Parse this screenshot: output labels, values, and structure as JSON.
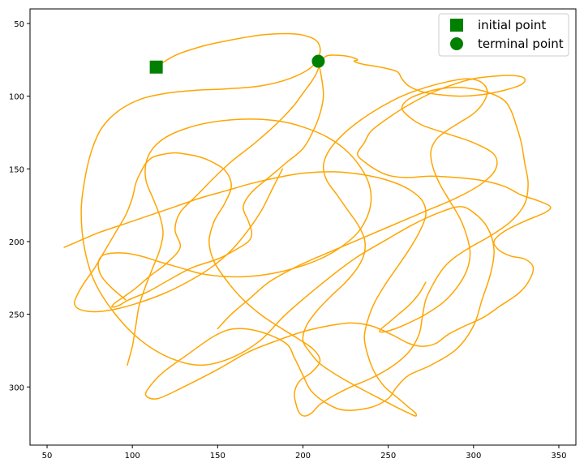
{
  "chart_data": {
    "type": "line",
    "title": "",
    "xlabel": "",
    "ylabel": "",
    "xlim": [
      40,
      360
    ],
    "ylim": [
      340,
      40
    ],
    "y_inverted": true,
    "x_ticks": [
      50,
      100,
      150,
      200,
      250,
      300,
      350
    ],
    "y_ticks": [
      50,
      100,
      150,
      200,
      250,
      300
    ],
    "grid": false,
    "legend_position": "top-right",
    "colors": {
      "trajectory": "#FFA500",
      "markers": "#008000"
    },
    "series": [
      {
        "kind": "trajectory",
        "x": [
          114,
          125,
          140,
          155,
          175,
          190,
          200,
          208,
          210,
          205,
          192,
          175,
          155,
          137,
          120,
          105,
          92,
          82,
          76,
          72,
          70,
          72,
          78,
          90,
          105,
          122,
          140,
          158,
          175,
          190,
          210,
          230,
          250,
          265,
          280,
          292,
          300,
          308,
          312,
          310,
          305,
          300,
          290,
          275,
          262,
          255,
          250,
          240,
          225,
          215,
          205,
          200,
          195,
          190,
          175,
          160,
          148,
          132,
          118,
          110,
          108,
          115,
          130,
          150,
          168,
          185,
          200,
          215,
          228,
          240,
          252,
          262,
          270,
          278,
          285,
          295,
          306,
          316,
          326,
          332,
          335,
          330,
          322,
          315,
          312,
          318,
          330,
          342,
          345,
          338,
          328,
          318,
          305,
          290,
          275,
          262,
          252,
          245,
          237,
          232,
          236,
          240,
          250,
          262,
          275,
          288,
          300,
          315,
          325,
          330,
          328,
          318,
          305,
          292,
          280,
          270,
          262,
          258,
          255,
          245,
          235,
          230,
          232,
          228,
          222,
          215,
          212,
          210,
          208,
          205,
          200,
          195,
          188,
          180,
          170,
          158,
          148,
          138,
          128,
          125,
          128,
          120,
          110,
          102,
          95,
          90,
          88,
          92,
          98,
          110,
          122,
          135,
          150,
          160,
          168,
          170,
          168,
          165,
          170,
          180,
          190,
          200,
          206,
          210,
          212,
          211,
          209
        ],
        "y": [
          80,
          72,
          66,
          62,
          58,
          57,
          58,
          62,
          70,
          80,
          88,
          93,
          95,
          96,
          98,
          102,
          110,
          122,
          138,
          158,
          180,
          205,
          228,
          250,
          268,
          280,
          285,
          280,
          268,
          250,
          230,
          212,
          198,
          188,
          180,
          176,
          180,
          190,
          205,
          222,
          240,
          258,
          274,
          285,
          292,
          300,
          308,
          314,
          316,
          312,
          303,
          292,
          280,
          270,
          262,
          260,
          265,
          278,
          290,
          300,
          306,
          308,
          300,
          288,
          276,
          268,
          262,
          258,
          256,
          258,
          264,
          270,
          272,
          270,
          264,
          258,
          252,
          244,
          236,
          228,
          218,
          212,
          210,
          206,
          200,
          193,
          186,
          180,
          176,
          172,
          168,
          162,
          158,
          156,
          155,
          156,
          155,
          152,
          146,
          140,
          132,
          124,
          115,
          106,
          98,
          92,
          88,
          86,
          86,
          88,
          92,
          96,
          99,
          100,
          99,
          97,
          93,
          88,
          83,
          80,
          78,
          76,
          75,
          73,
          72,
          72,
          74,
          78,
          84,
          90,
          98,
          106,
          115,
          124,
          134,
          145,
          156,
          168,
          180,
          192,
          204,
          215,
          224,
          232,
          238,
          242,
          245,
          244,
          240,
          234,
          226,
          218,
          212,
          206,
          200,
          194,
          186,
          176,
          166,
          156,
          146,
          136,
          124,
          112,
          100,
          88,
          76
        ]
      },
      {
        "kind": "trajectory",
        "x": [
          150,
          158,
          168,
          180,
          195,
          210,
          230,
          250,
          270,
          290,
          305,
          313,
          312,
          300,
          285,
          270,
          262,
          258,
          262,
          270,
          280,
          290,
          300,
          310,
          318,
          322,
          325,
          328,
          330,
          332,
          330,
          322,
          310,
          298,
          290,
          284,
          280,
          276,
          272,
          270,
          268,
          262,
          252,
          240,
          228,
          218,
          210,
          205,
          201,
          198,
          196,
          195,
          198,
          205,
          210,
          206,
          196,
          185,
          175,
          165,
          156,
          148,
          145,
          148,
          154,
          158,
          155,
          148,
          140,
          132,
          125,
          118,
          112,
          108,
          105,
          102,
          100,
          96,
          90,
          84,
          78,
          72,
          68,
          66,
          68,
          74,
          82,
          92,
          104,
          118,
          132,
          146,
          158,
          168,
          176,
          182,
          188
        ],
        "y": [
          260,
          250,
          240,
          228,
          218,
          210,
          200,
          190,
          180,
          170,
          160,
          150,
          140,
          132,
          126,
          120,
          114,
          108,
          102,
          98,
          95,
          94,
          95,
          98,
          103,
          110,
          120,
          132,
          146,
          160,
          174,
          186,
          196,
          204,
          210,
          216,
          222,
          230,
          240,
          252,
          264,
          276,
          286,
          294,
          300,
          306,
          312,
          318,
          320,
          318,
          312,
          304,
          296,
          290,
          282,
          274,
          266,
          258,
          250,
          240,
          228,
          214,
          200,
          186,
          174,
          162,
          152,
          146,
          142,
          140,
          139,
          140,
          142,
          146,
          152,
          160,
          170,
          182,
          194,
          206,
          218,
          228,
          236,
          242,
          246,
          248,
          248,
          246,
          242,
          236,
          228,
          218,
          206,
          192,
          178,
          164,
          150
        ]
      },
      {
        "kind": "trajectory",
        "x": [
          60,
          68,
          80,
          95,
          110,
          125,
          140,
          155,
          170,
          185,
          200,
          218,
          235,
          250,
          262,
          270,
          272,
          268,
          262,
          255,
          248,
          242,
          238,
          236,
          238,
          242,
          248,
          256,
          262,
          266,
          266,
          262,
          255,
          245,
          232,
          220,
          210,
          204,
          200,
          202,
          208,
          216,
          225,
          232,
          236,
          236,
          232,
          226,
          220,
          214,
          212,
          215,
          222,
          232,
          245,
          258,
          272,
          285,
          296,
          304,
          308,
          306,
          300,
          292,
          284,
          278,
          275,
          276,
          280,
          286,
          292,
          296,
          298,
          296,
          290,
          282,
          272,
          262,
          254,
          248,
          245,
          246,
          250,
          256,
          262,
          268,
          272
        ],
        "y": [
          204,
          200,
          194,
          188,
          182,
          176,
          170,
          165,
          160,
          156,
          153,
          152,
          154,
          158,
          164,
          172,
          182,
          194,
          206,
          218,
          230,
          242,
          254,
          266,
          278,
          290,
          300,
          308,
          314,
          318,
          320,
          318,
          314,
          308,
          300,
          292,
          284,
          276,
          268,
          258,
          248,
          238,
          228,
          218,
          208,
          198,
          188,
          178,
          168,
          158,
          148,
          138,
          128,
          118,
          108,
          100,
          94,
          90,
          88,
          90,
          96,
          104,
          112,
          118,
          124,
          130,
          138,
          148,
          160,
          172,
          184,
          196,
          208,
          220,
          232,
          242,
          250,
          256,
          260,
          262,
          262,
          260,
          256,
          250,
          244,
          236,
          228
        ]
      },
      {
        "kind": "trajectory",
        "x": [
          97,
          100,
          102,
          104,
          108,
          112,
          116,
          118,
          116,
          112,
          108,
          108,
          112,
          120,
          132,
          146,
          162,
          176,
          190,
          202,
          214,
          224,
          232,
          238,
          240,
          238,
          232,
          222,
          210,
          196,
          182,
          168,
          154,
          140,
          128,
          116,
          105,
          96,
          88,
          82,
          80,
          82,
          88,
          96
        ],
        "y": [
          285,
          272,
          258,
          244,
          230,
          218,
          206,
          194,
          182,
          170,
          158,
          146,
          136,
          128,
          122,
          118,
          116,
          116,
          118,
          122,
          128,
          136,
          146,
          158,
          170,
          182,
          194,
          204,
          212,
          218,
          222,
          224,
          224,
          222,
          218,
          214,
          210,
          208,
          208,
          210,
          216,
          224,
          232,
          240
        ]
      },
      {
        "kind": "marker",
        "name": "initial point",
        "shape": "square",
        "x": [
          114
        ],
        "y": [
          80
        ]
      },
      {
        "kind": "marker",
        "name": "terminal point",
        "shape": "circle",
        "x": [
          209
        ],
        "y": [
          76
        ]
      }
    ]
  }
}
